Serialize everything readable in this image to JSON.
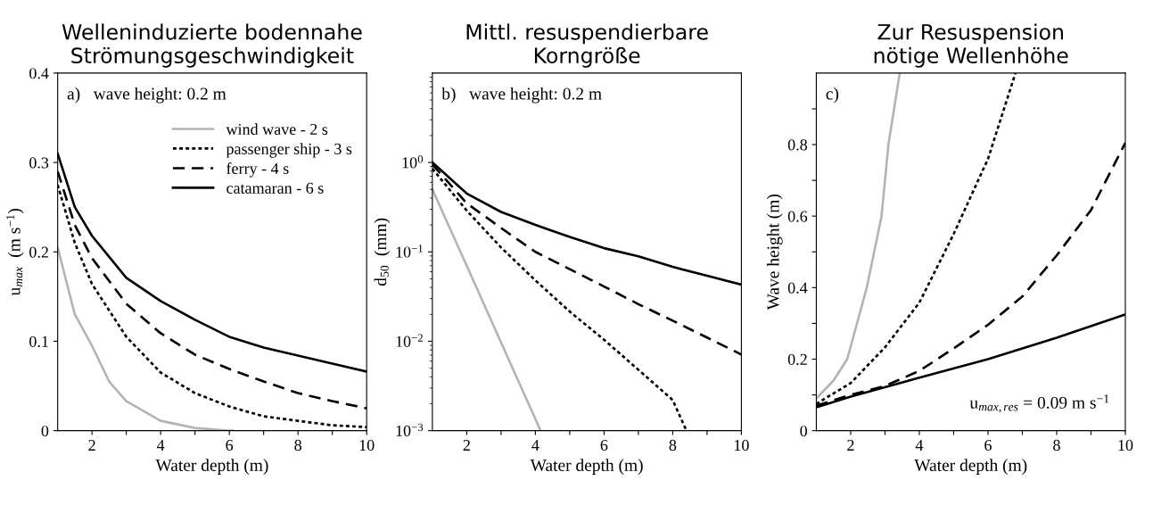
{
  "chart_data": [
    {
      "type": "line",
      "title": "Welleninduzierte bodennahe\nStrömungsgeschwindigkeit",
      "xlabel": "Water depth (m)",
      "ylabel": "u$_{max}$  (m s$^{−1}$)",
      "xlim": [
        1,
        10
      ],
      "xticks": [
        2,
        {
          "value": 3,
          "label": null
        },
        4,
        {
          "value": 5,
          "label": null
        },
        6,
        {
          "value": 7,
          "label": null
        },
        8,
        {
          "value": 9,
          "label": null
        },
        10
      ],
      "ylim": [
        0,
        0.4
      ],
      "yticks": [
        0,
        0.1,
        0.2,
        0.3,
        0.4
      ],
      "grid": false,
      "legend": "top right",
      "annotations": [
        "a)   wave height: 0.2 m"
      ],
      "series": [
        {
          "name": "wind wave - 2 s",
          "color": "#b4b4b4",
          "line_style": "solid",
          "x": [
            1,
            1.5,
            2,
            2.5,
            3,
            4,
            5,
            6,
            6.1
          ],
          "values": [
            0.205,
            0.13,
            0.095,
            0.055,
            0.033,
            0.011,
            0.003,
            0.0,
            0.0
          ]
        },
        {
          "name": "passenger ship - 3 s",
          "color": "#000000",
          "line_style": "dotted",
          "x": [
            1,
            1.5,
            2,
            3,
            4,
            5,
            6,
            7,
            8,
            9,
            10
          ],
          "values": [
            0.275,
            0.21,
            0.164,
            0.105,
            0.065,
            0.042,
            0.027,
            0.016,
            0.011,
            0.006,
            0.004
          ]
        },
        {
          "name": "ferry - 4 s",
          "color": "#000000",
          "line_style": "dashed",
          "x": [
            1,
            1.5,
            2,
            3,
            4,
            5,
            6,
            7,
            8,
            9,
            10
          ],
          "values": [
            0.29,
            0.23,
            0.193,
            0.142,
            0.109,
            0.085,
            0.069,
            0.055,
            0.042,
            0.033,
            0.025
          ]
        },
        {
          "name": "catamaran - 6 s",
          "color": "#000000",
          "line_style": "solid",
          "x": [
            1,
            1.5,
            2,
            3,
            4,
            5,
            6,
            7,
            8,
            9,
            10
          ],
          "values": [
            0.31,
            0.25,
            0.218,
            0.171,
            0.145,
            0.124,
            0.105,
            0.093,
            0.084,
            0.075,
            0.066
          ]
        }
      ]
    },
    {
      "type": "line",
      "title": "Mittl. resuspendierbare\nKorngröße",
      "xlabel": "Water depth (m)",
      "ylabel": "d$_{50}$  (mm)",
      "log": "y",
      "xlim": [
        1,
        10
      ],
      "xticks": [
        2,
        {
          "value": 3,
          "label": null
        },
        4,
        {
          "value": 5,
          "label": null
        },
        6,
        {
          "value": 7,
          "label": null
        },
        8,
        {
          "value": 9,
          "label": null
        },
        10
      ],
      "ylim": [
        0.001,
        10
      ],
      "yticks": [
        {
          "value": 0.001,
          "label": "10$^{−3}$"
        },
        {
          "value": 0.01,
          "label": "10$^{−2}$"
        },
        {
          "value": 0.1,
          "label": "10$^{−1}$"
        },
        {
          "value": 1,
          "label": "10$^{0}$"
        }
      ],
      "grid": false,
      "legend": false,
      "annotations": [
        "b)   wave height: 0.2 m"
      ],
      "series": [
        {
          "color": "#b4b4b4",
          "line_style": "solid",
          "x": [
            1,
            2,
            3,
            4,
            4.15
          ],
          "values": [
            0.5,
            0.07,
            0.0097,
            0.00135,
            0.001
          ]
        },
        {
          "color": "#000000",
          "line_style": "dotted",
          "x": [
            1,
            2,
            3,
            4,
            5,
            6,
            7,
            8,
            8.4
          ],
          "values": [
            0.85,
            0.29,
            0.112,
            0.048,
            0.0215,
            0.0104,
            0.0048,
            0.0022,
            0.001
          ]
        },
        {
          "color": "#000000",
          "line_style": "dashed",
          "x": [
            1,
            2,
            3,
            4,
            5,
            6,
            7,
            8,
            9,
            10
          ],
          "values": [
            0.95,
            0.35,
            0.185,
            0.1,
            0.064,
            0.041,
            0.026,
            0.017,
            0.011,
            0.0071
          ]
        },
        {
          "color": "#000000",
          "line_style": "solid",
          "x": [
            1,
            2,
            3,
            4,
            5,
            6,
            7,
            8,
            9,
            10
          ],
          "values": [
            1.0,
            0.45,
            0.28,
            0.2,
            0.147,
            0.11,
            0.089,
            0.068,
            0.054,
            0.043
          ]
        }
      ]
    },
    {
      "type": "line",
      "title": "Zur Resuspension\nnötige Wellenhöhe",
      "xlabel": "Water depth (m)",
      "ylabel": "Wave height (m)",
      "xlim": [
        1,
        10
      ],
      "xticks": [
        2,
        {
          "value": 3,
          "label": null
        },
        4,
        {
          "value": 5,
          "label": null
        },
        6,
        {
          "value": 7,
          "label": null
        },
        8,
        {
          "value": 9,
          "label": null
        },
        10
      ],
      "ylim": [
        0,
        1
      ],
      "yticks": [
        0,
        {
          "value": 0.1,
          "label": null
        },
        0.2,
        {
          "value": 0.3,
          "label": null
        },
        0.4,
        {
          "value": 0.5,
          "label": null
        },
        0.6,
        {
          "value": 0.7,
          "label": null
        },
        0.8,
        {
          "value": 0.9,
          "label": null
        }
      ],
      "grid": false,
      "legend": false,
      "annotations": [
        "c)",
        "u$_{max,res}$ = 0.09 m s$^{−1}$"
      ],
      "series": [
        {
          "color": "#b4b4b4",
          "line_style": "solid",
          "x": [
            1,
            1.5,
            1.9,
            2.47,
            2.9,
            3.1,
            3.43
          ],
          "values": [
            0.09,
            0.14,
            0.2,
            0.4,
            0.6,
            0.8,
            1.0
          ]
        },
        {
          "color": "#000000",
          "line_style": "dotted",
          "x": [
            1,
            2,
            3,
            4,
            5,
            6,
            6.8
          ],
          "values": [
            0.075,
            0.133,
            0.233,
            0.358,
            0.55,
            0.76,
            1.0
          ]
        },
        {
          "color": "#000000",
          "line_style": "dashed",
          "x": [
            1,
            2,
            3,
            4,
            5,
            6,
            7,
            8,
            9,
            10
          ],
          "values": [
            0.07,
            0.1,
            0.125,
            0.167,
            0.23,
            0.296,
            0.375,
            0.49,
            0.617,
            0.805
          ]
        },
        {
          "color": "#000000",
          "line_style": "solid",
          "x": [
            1,
            2,
            4,
            6,
            8,
            10
          ],
          "values": [
            0.065,
            0.095,
            0.148,
            0.2,
            0.26,
            0.325
          ]
        }
      ]
    }
  ]
}
